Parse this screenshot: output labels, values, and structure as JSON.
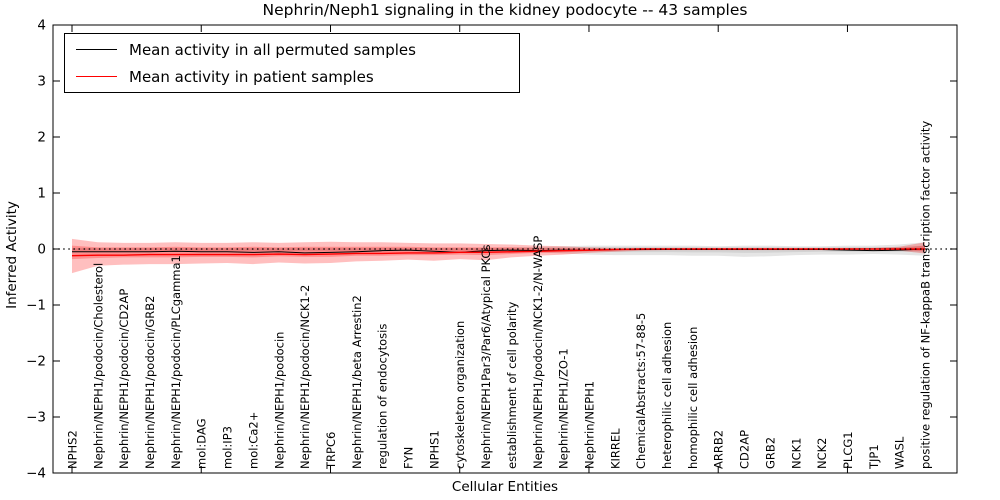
{
  "chart_data": {
    "type": "line",
    "title": "Nephrin/Neph1 signaling in the kidney podocyte -- 43 samples",
    "xlabel": "Cellular Entities",
    "ylabel": "Inferred Activity",
    "ylim": [
      -4,
      4
    ],
    "yticks": [
      "4",
      "3",
      "2",
      "1",
      "0",
      "−1",
      "−2",
      "−3",
      "−4"
    ],
    "ytick_values": [
      4,
      3,
      2,
      1,
      0,
      -1,
      -2,
      -3,
      -4
    ],
    "xtick_index_positions": [
      0,
      5,
      10,
      15,
      20,
      25,
      30
    ],
    "grid": false,
    "zero_reference_line": {
      "style": "dotted",
      "color": "#000000",
      "y": 0
    },
    "legend_position": "upper-left",
    "categories": [
      "NPHS2",
      "Nephrin/NEPH1/podocin/Cholesterol",
      "Nephrin/NEPH1/podocin/CD2AP",
      "Nephrin/NEPH1/podocin/GRB2",
      "Nephrin/NEPH1/podocin/PLCgamma1",
      "mol:DAG",
      "mol:IP3",
      "mol:Ca2+",
      "Nephrin/NEPH1/podocin",
      "Nephrin/NEPH1/podocin/NCK1-2",
      "TRPC6",
      "Nephrin/NEPH1/beta Arrestin2",
      "regulation of endocytosis",
      "FYN",
      "NPHS1",
      "cytoskeleton organization",
      "Nephrin/NEPH1Par3/Par6/Atypical PKCs",
      "establishment of cell polarity",
      "Nephrin/NEPH1/podocin/NCK1-2/N-WASP",
      "Nephrin/NEPH1/ZO-1",
      "Nephrin/NEPH1",
      "KIRREL",
      "ChemicalAbstracts:57-88-5",
      "heterophilic cell adhesion",
      "homophilic cell adhesion",
      "ARRB2",
      "CD2AP",
      "GRB2",
      "NCK1",
      "NCK2",
      "PLCG1",
      "TJP1",
      "WASL",
      "positive regulation of NF-kappaB transcription factor activity"
    ],
    "series": [
      {
        "name": "Mean activity in all permuted samples",
        "color": "#000000",
        "values": [
          -0.05,
          -0.05,
          -0.05,
          -0.05,
          -0.04,
          -0.05,
          -0.05,
          -0.06,
          -0.05,
          -0.07,
          -0.06,
          -0.05,
          -0.03,
          -0.02,
          -0.04,
          -0.06,
          -0.03,
          -0.02,
          -0.03,
          -0.02,
          -0.02,
          -0.01,
          -0.01,
          -0.01,
          -0.01,
          -0.01,
          -0.01,
          -0.01,
          -0.01,
          -0.01,
          -0.02,
          -0.03,
          -0.02,
          0.0
        ]
      },
      {
        "name": "Mean activity in patient samples",
        "color": "#ff0000",
        "values": [
          -0.12,
          -0.11,
          -0.11,
          -0.1,
          -0.1,
          -0.1,
          -0.1,
          -0.1,
          -0.09,
          -0.1,
          -0.09,
          -0.08,
          -0.08,
          -0.07,
          -0.07,
          -0.06,
          -0.06,
          -0.05,
          -0.04,
          -0.03,
          -0.02,
          -0.01,
          0.0,
          0.0,
          0.0,
          0.0,
          0.0,
          0.0,
          0.0,
          0.0,
          0.0,
          0.0,
          0.0,
          0.0
        ]
      }
    ],
    "bands": [
      {
        "name": "permuted-band-outer",
        "color": "rgba(0,0,0,0.10)",
        "upper": [
          0.02,
          0.02,
          0.02,
          0.02,
          0.02,
          0.02,
          0.02,
          0.02,
          0.02,
          0.02,
          0.02,
          0.02,
          0.02,
          0.02,
          0.02,
          0.02,
          0.02,
          0.03,
          0.04,
          0.05,
          0.06,
          0.06,
          0.06,
          0.06,
          0.06,
          0.05,
          0.06,
          0.06,
          0.05,
          0.05,
          0.06,
          0.06,
          0.08,
          0.12
        ],
        "lower": [
          -0.04,
          -0.04,
          -0.04,
          -0.04,
          -0.04,
          -0.04,
          -0.04,
          -0.04,
          -0.04,
          -0.04,
          -0.04,
          -0.04,
          -0.04,
          -0.04,
          -0.04,
          -0.04,
          -0.04,
          -0.05,
          -0.06,
          -0.08,
          -0.1,
          -0.11,
          -0.11,
          -0.11,
          -0.12,
          -0.12,
          -0.14,
          -0.13,
          -0.11,
          -0.1,
          -0.1,
          -0.09,
          -0.1,
          -0.12
        ]
      },
      {
        "name": "permuted-band-inner",
        "color": "rgba(0,0,0,0.08)",
        "upper": [
          0.01,
          0.01,
          0.01,
          0.01,
          0.01,
          0.01,
          0.01,
          0.01,
          0.01,
          0.01,
          0.01,
          0.01,
          0.01,
          0.01,
          0.01,
          0.01,
          0.01,
          0.015,
          0.02,
          0.025,
          0.03,
          0.03,
          0.03,
          0.03,
          0.03,
          0.025,
          0.03,
          0.03,
          0.025,
          0.025,
          0.03,
          0.03,
          0.04,
          0.06
        ],
        "lower": [
          -0.02,
          -0.02,
          -0.02,
          -0.02,
          -0.02,
          -0.02,
          -0.02,
          -0.02,
          -0.02,
          -0.02,
          -0.02,
          -0.02,
          -0.02,
          -0.02,
          -0.02,
          -0.02,
          -0.02,
          -0.025,
          -0.03,
          -0.04,
          -0.05,
          -0.055,
          -0.055,
          -0.055,
          -0.06,
          -0.06,
          -0.07,
          -0.065,
          -0.055,
          -0.05,
          -0.05,
          -0.045,
          -0.05,
          -0.06
        ]
      },
      {
        "name": "patient-band-outer",
        "color": "rgba(255,0,0,0.25)",
        "upper": [
          0.18,
          0.12,
          0.11,
          0.11,
          0.12,
          0.11,
          0.11,
          0.12,
          0.11,
          0.12,
          0.13,
          0.12,
          0.12,
          0.11,
          0.1,
          0.1,
          0.09,
          0.08,
          0.06,
          0.05,
          0.03,
          0.02,
          0.02,
          0.02,
          0.02,
          0.02,
          0.02,
          0.02,
          0.02,
          0.02,
          0.02,
          0.02,
          0.04,
          0.12
        ],
        "lower": [
          -0.43,
          -0.3,
          -0.28,
          -0.27,
          -0.27,
          -0.26,
          -0.25,
          -0.27,
          -0.24,
          -0.26,
          -0.25,
          -0.22,
          -0.21,
          -0.19,
          -0.21,
          -0.18,
          -0.2,
          -0.15,
          -0.12,
          -0.1,
          -0.07,
          -0.05,
          -0.03,
          -0.02,
          -0.02,
          -0.02,
          -0.02,
          -0.02,
          -0.02,
          -0.02,
          -0.02,
          -0.02,
          -0.03,
          -0.08
        ]
      },
      {
        "name": "patient-band-inner",
        "color": "rgba(255,0,0,0.25)",
        "upper": [
          0.06,
          0.03,
          0.03,
          0.03,
          0.04,
          0.03,
          0.03,
          0.04,
          0.03,
          0.04,
          0.04,
          0.04,
          0.04,
          0.04,
          0.03,
          0.03,
          0.03,
          0.03,
          0.02,
          0.02,
          0.01,
          0.01,
          0.01,
          0.01,
          0.01,
          0.01,
          0.01,
          0.01,
          0.01,
          0.01,
          0.01,
          0.01,
          0.02,
          0.06
        ],
        "lower": [
          -0.18,
          -0.16,
          -0.15,
          -0.15,
          -0.15,
          -0.14,
          -0.14,
          -0.15,
          -0.13,
          -0.14,
          -0.14,
          -0.12,
          -0.12,
          -0.11,
          -0.11,
          -0.1,
          -0.11,
          -0.09,
          -0.07,
          -0.06,
          -0.04,
          -0.03,
          -0.02,
          -0.01,
          -0.01,
          -0.01,
          -0.01,
          -0.01,
          -0.01,
          -0.01,
          -0.01,
          -0.01,
          -0.02,
          -0.04
        ]
      }
    ]
  }
}
